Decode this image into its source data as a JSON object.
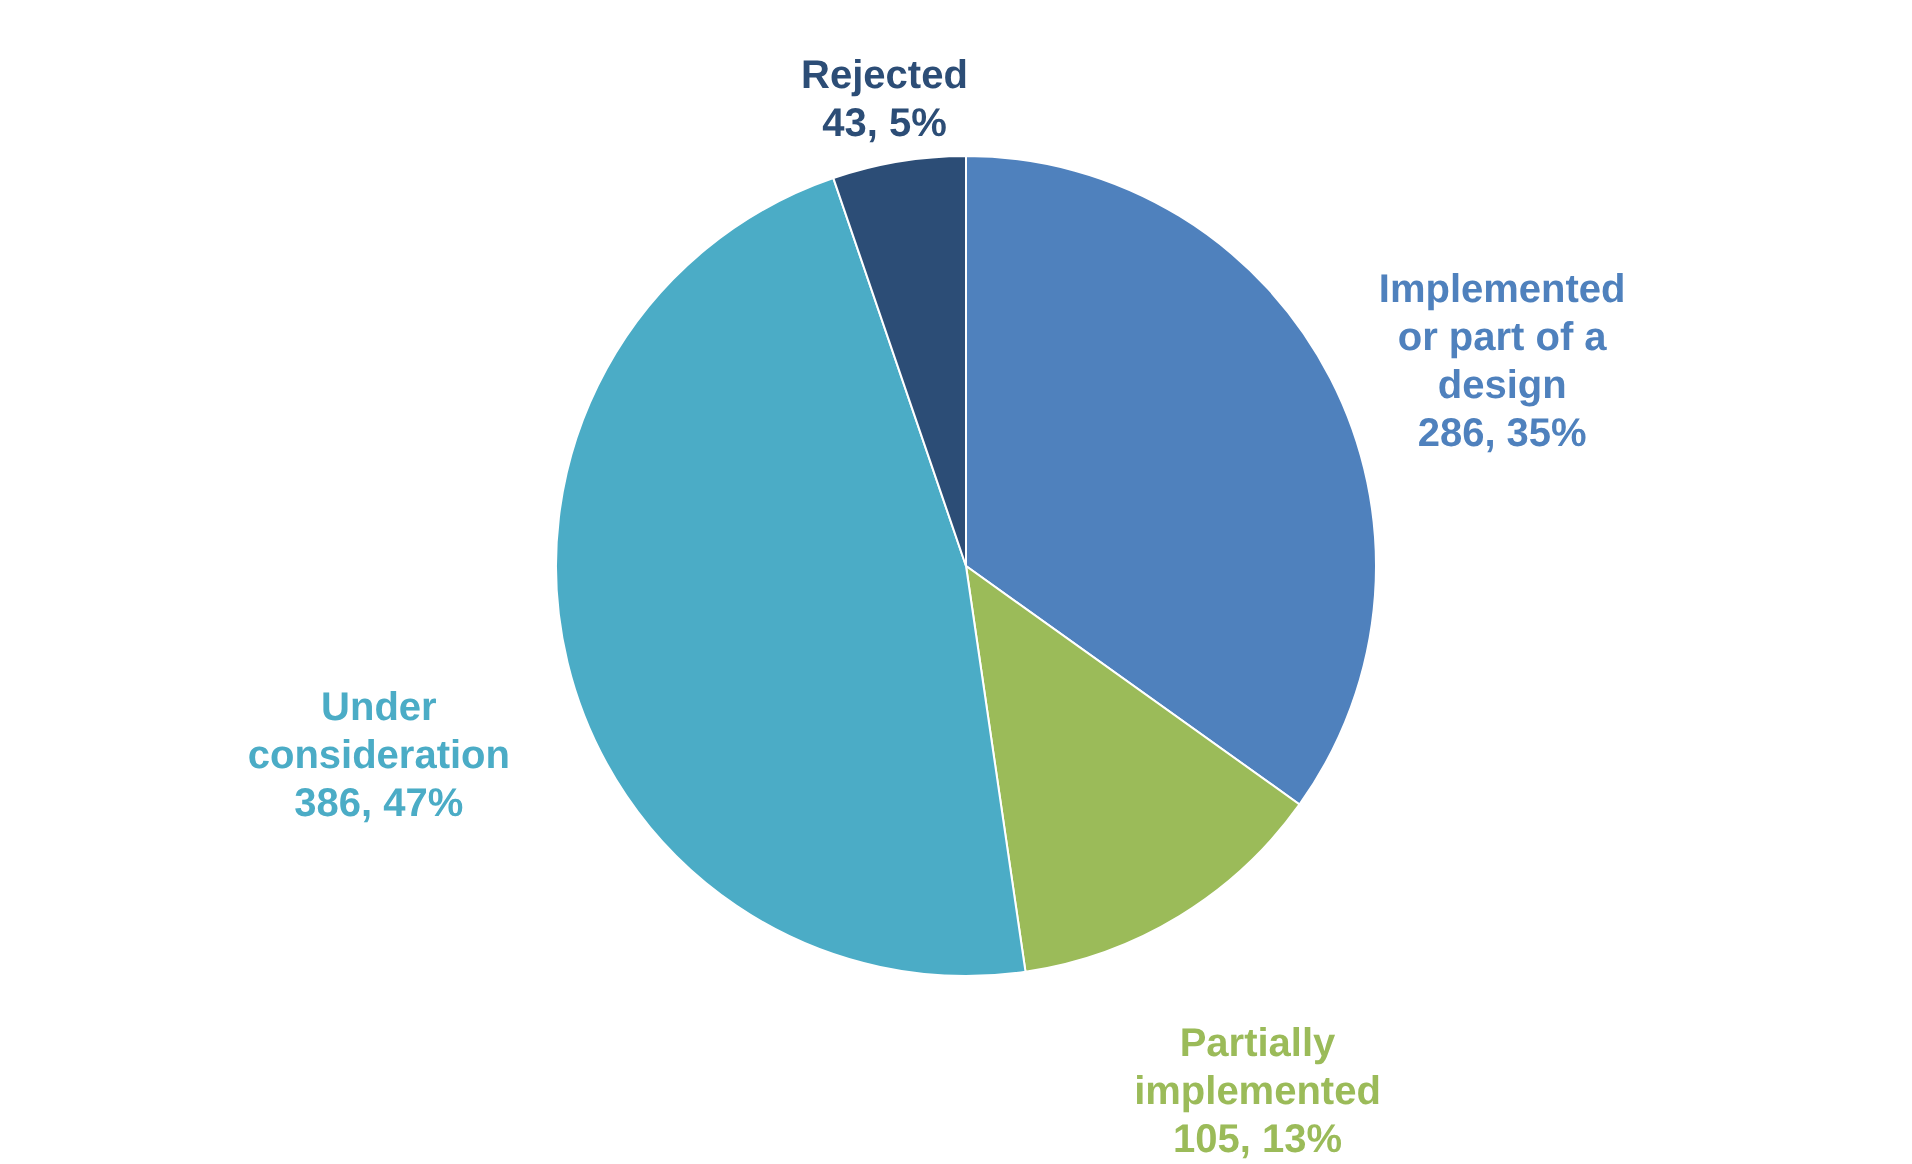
{
  "chart_data": {
    "type": "pie",
    "categories": [
      "Implemented or part of a design",
      "Partially implemented",
      "Under consideration",
      "Rejected"
    ],
    "values": [
      286,
      105,
      386,
      43
    ],
    "colors": [
      "#4f81bd",
      "#9bbb59",
      "#4bacc6",
      "#2c4d76"
    ],
    "value_labels": [
      "286, 35%",
      "105, 13%",
      "386, 47%",
      "43, 5%"
    ],
    "legend": false
  }
}
